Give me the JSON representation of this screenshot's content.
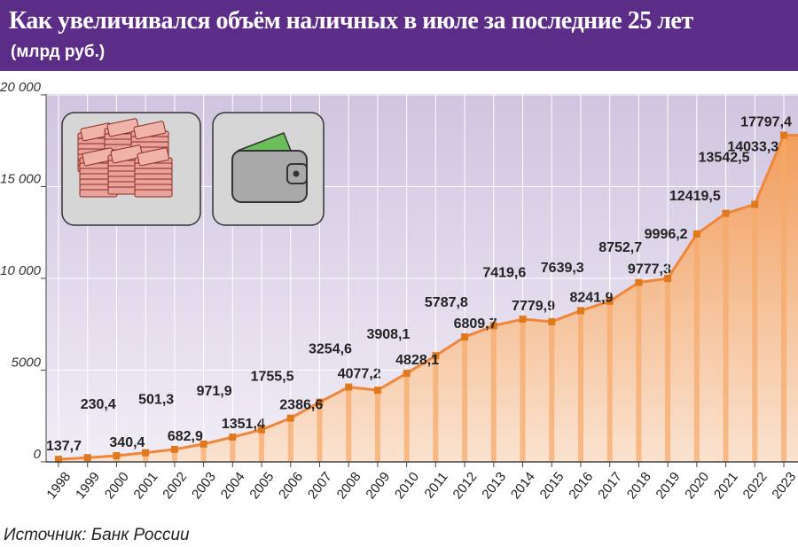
{
  "header": {
    "title": "Как увеличивался объём наличных в июле за последние 25 лет",
    "subtitle": "(млрд руб.)"
  },
  "source": "Источник: Банк России",
  "colors": {
    "header_bg": "#5b2d87",
    "line": "#f0863a",
    "marker": "#e0781e",
    "plot_bg": "#d9d1e6",
    "area_fill": "#f5a565"
  },
  "icons": [
    "money-stacks-icon",
    "wallet-icon"
  ],
  "chart_data": {
    "type": "area",
    "title": "Как увеличивался объём наличных в июле за последние 25 лет",
    "subtitle": "(млрд руб.)",
    "xlabel": "",
    "ylabel": "",
    "grid": true,
    "legend": "none",
    "ylim": [
      0,
      20000
    ],
    "y_ticks": [
      "0",
      "5000",
      "10 000",
      "15 000",
      "20 000"
    ],
    "y_tick_values": [
      0,
      5000,
      10000,
      15000,
      20000
    ],
    "categories": [
      "1998",
      "1999",
      "2000",
      "2001",
      "2002",
      "2003",
      "2004",
      "2005",
      "2006",
      "2007",
      "2008",
      "2009",
      "2010",
      "2011",
      "2012",
      "2013",
      "2014",
      "2015",
      "2016",
      "2017",
      "2018",
      "2019",
      "2020",
      "2021",
      "2022",
      "2023"
    ],
    "values": [
      137.7,
      230.4,
      340.4,
      501.3,
      682.9,
      971.9,
      1351.4,
      1755.5,
      2386.6,
      3254.6,
      4077.2,
      3908.1,
      4828.1,
      5787.8,
      6809.7,
      7419.6,
      7779.9,
      7639.3,
      8241.9,
      8752.7,
      9777.3,
      9996.2,
      12419.5,
      13542.5,
      14033.3,
      17797.4
    ],
    "labels": [
      "137,7",
      "230,4",
      "340,4",
      "501,3",
      "682,9",
      "971,9",
      "1351,4",
      "1755,5",
      "2386,6",
      "3254,6",
      "4077,2",
      "3908,1",
      "4828,1",
      "5787,8",
      "6809,7",
      "7419,6",
      "7779,9",
      "7639,3",
      "8241,9",
      "8752,7",
      "9777,3",
      "9996,2",
      "12419,5",
      "13542,5",
      "14033,3",
      "17797,4"
    ]
  }
}
